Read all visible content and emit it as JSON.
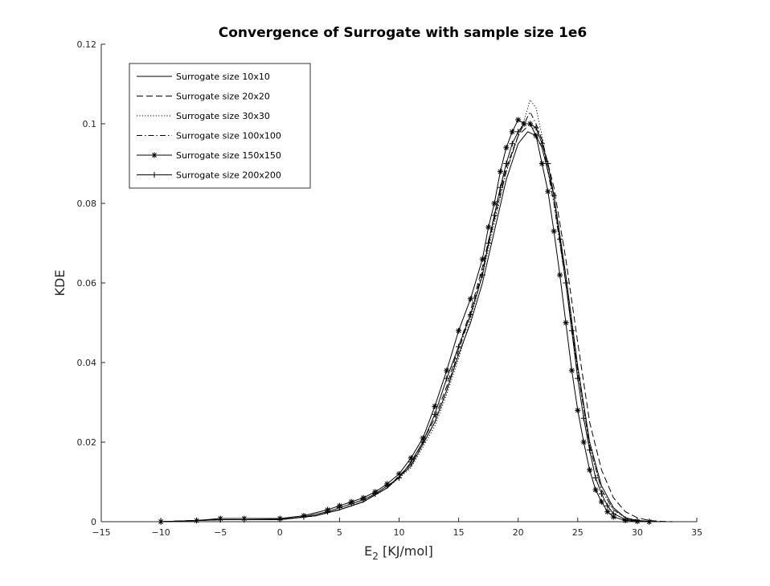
{
  "chart_data": {
    "type": "line",
    "title": "Convergence of Surrogate with sample size 1e6",
    "xlabel": {
      "main": "E",
      "sub": "2",
      "unit": " [KJ/mol]"
    },
    "ylabel": "KDE",
    "xlim": [
      -15,
      35
    ],
    "ylim": [
      0,
      0.12
    ],
    "xticks": [
      -15,
      -10,
      -5,
      0,
      5,
      10,
      15,
      20,
      25,
      30,
      35
    ],
    "xtick_labels": [
      "−15",
      "−10",
      "−5",
      "0",
      "5",
      "10",
      "15",
      "20",
      "25",
      "30",
      "35"
    ],
    "yticks": [
      0,
      0.02,
      0.04,
      0.06,
      0.08,
      0.1,
      0.12
    ],
    "ytick_labels": [
      "0",
      "0.02",
      "0.04",
      "0.06",
      "0.08",
      "0.1",
      "0.12"
    ],
    "grid": false,
    "legend_position": "top-left",
    "series": [
      {
        "name": "Surrogate size 10x10",
        "style": "solid",
        "marker": "none",
        "x": [
          -10,
          -5,
          0,
          3,
          5,
          7,
          9,
          11,
          13,
          14,
          15,
          16,
          17,
          18,
          19,
          20,
          20.8,
          21.5,
          22,
          23,
          24,
          25,
          26,
          27,
          28,
          29,
          30,
          31,
          32
        ],
        "y": [
          0,
          0.0005,
          0.0005,
          0.0015,
          0.003,
          0.005,
          0.0085,
          0.014,
          0.025,
          0.033,
          0.042,
          0.05,
          0.06,
          0.073,
          0.086,
          0.095,
          0.098,
          0.097,
          0.094,
          0.082,
          0.062,
          0.039,
          0.02,
          0.009,
          0.0035,
          0.001,
          0.0003,
          0.0001,
          0
        ]
      },
      {
        "name": "Surrogate size 20x20",
        "style": "dashed",
        "marker": "none",
        "x": [
          -10,
          -5,
          0,
          3,
          5,
          7,
          9,
          11,
          13,
          14,
          15,
          16,
          17,
          18,
          19,
          20,
          21,
          21.5,
          22,
          23,
          24,
          25,
          26,
          27,
          28,
          29,
          30,
          31,
          32,
          33
        ],
        "y": [
          0,
          0.0005,
          0.0005,
          0.0015,
          0.003,
          0.005,
          0.0085,
          0.0145,
          0.026,
          0.034,
          0.044,
          0.053,
          0.064,
          0.077,
          0.089,
          0.097,
          0.1,
          0.099,
          0.096,
          0.084,
          0.066,
          0.045,
          0.025,
          0.013,
          0.006,
          0.0025,
          0.001,
          0.0003,
          0.0001,
          0
        ]
      },
      {
        "name": "Surrogate size 30x30",
        "style": "dotted",
        "marker": "none",
        "x": [
          -10,
          -5,
          0,
          3,
          5,
          7,
          9,
          11,
          13,
          14,
          15,
          16,
          17,
          18,
          19,
          20,
          20.5,
          21,
          21.5,
          22,
          23,
          24,
          25,
          26,
          27,
          28,
          29,
          30,
          31
        ],
        "y": [
          0,
          0.0005,
          0.0005,
          0.0015,
          0.003,
          0.005,
          0.0085,
          0.0135,
          0.024,
          0.032,
          0.041,
          0.051,
          0.062,
          0.075,
          0.088,
          0.097,
          0.101,
          0.106,
          0.104,
          0.097,
          0.08,
          0.06,
          0.038,
          0.019,
          0.008,
          0.003,
          0.001,
          0.0003,
          0
        ]
      },
      {
        "name": "Surrogate size 100x100",
        "style": "dashdot",
        "marker": "none",
        "x": [
          -10,
          -5,
          0,
          3,
          5,
          7,
          9,
          11,
          13,
          14,
          15,
          16,
          17,
          18,
          19,
          20,
          20.5,
          21,
          21.5,
          22,
          23,
          24,
          25,
          26,
          27,
          28,
          29,
          30,
          31
        ],
        "y": [
          0,
          0.0005,
          0.0005,
          0.0015,
          0.003,
          0.005,
          0.0085,
          0.014,
          0.025,
          0.033,
          0.043,
          0.052,
          0.063,
          0.076,
          0.088,
          0.097,
          0.1,
          0.103,
          0.1,
          0.096,
          0.08,
          0.06,
          0.038,
          0.019,
          0.008,
          0.003,
          0.001,
          0.0003,
          0
        ]
      },
      {
        "name": "Surrogate size 150x150",
        "style": "solid",
        "marker": "asterisk",
        "x": [
          -10,
          -7,
          -5,
          -3,
          0,
          2,
          4,
          5,
          6,
          7,
          8,
          9,
          10,
          11,
          12,
          13,
          14,
          15,
          16,
          17,
          17.5,
          18,
          18.5,
          19,
          19.5,
          20,
          20.5,
          21,
          21.5,
          22,
          22.5,
          23,
          23.5,
          24,
          24.5,
          25,
          25.5,
          26,
          26.5,
          27,
          27.5,
          28,
          29,
          30,
          31
        ],
        "y": [
          0,
          0.0003,
          0.0008,
          0.0008,
          0.0008,
          0.0015,
          0.003,
          0.004,
          0.005,
          0.006,
          0.0075,
          0.0095,
          0.012,
          0.016,
          0.021,
          0.029,
          0.038,
          0.048,
          0.056,
          0.066,
          0.074,
          0.08,
          0.088,
          0.094,
          0.098,
          0.101,
          0.1,
          0.1,
          0.097,
          0.09,
          0.083,
          0.073,
          0.062,
          0.05,
          0.038,
          0.028,
          0.02,
          0.013,
          0.008,
          0.005,
          0.0025,
          0.0012,
          0.0003,
          0.0001,
          0
        ]
      },
      {
        "name": "Surrogate size 200x200",
        "style": "solid",
        "marker": "plus",
        "x": [
          -10,
          -7,
          -5,
          -3,
          0,
          2,
          4,
          5,
          6,
          7,
          8,
          9,
          10,
          11,
          12,
          13,
          14,
          15,
          16,
          17,
          17.5,
          18,
          18.5,
          19,
          19.5,
          20,
          20.5,
          21,
          21.5,
          22,
          22.5,
          23,
          23.5,
          24,
          24.5,
          25,
          25.5,
          26,
          26.5,
          27,
          27.5,
          28,
          29,
          30,
          31
        ],
        "y": [
          0,
          0.0003,
          0.0005,
          0.0005,
          0.0006,
          0.0012,
          0.0025,
          0.0035,
          0.0045,
          0.0055,
          0.007,
          0.009,
          0.011,
          0.015,
          0.02,
          0.027,
          0.036,
          0.044,
          0.052,
          0.062,
          0.07,
          0.077,
          0.084,
          0.09,
          0.095,
          0.098,
          0.1,
          0.1,
          0.099,
          0.095,
          0.09,
          0.082,
          0.071,
          0.06,
          0.048,
          0.036,
          0.026,
          0.018,
          0.011,
          0.007,
          0.004,
          0.002,
          0.0006,
          0.0002,
          0
        ]
      }
    ]
  }
}
